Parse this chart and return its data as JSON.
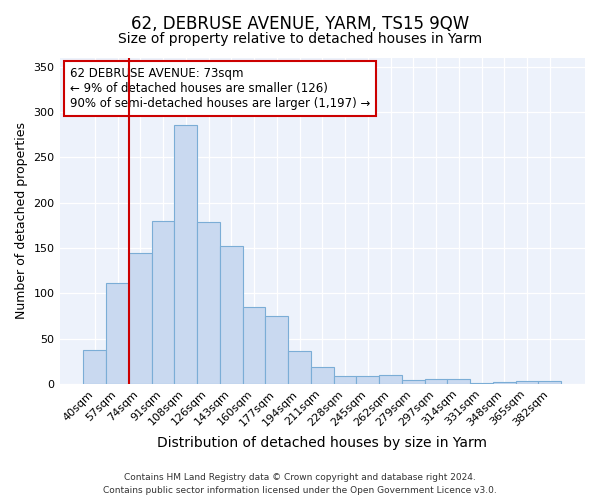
{
  "title": "62, DEBRUSE AVENUE, YARM, TS15 9QW",
  "subtitle": "Size of property relative to detached houses in Yarm",
  "xlabel": "Distribution of detached houses by size in Yarm",
  "ylabel": "Number of detached properties",
  "bar_labels": [
    "40sqm",
    "57sqm",
    "74sqm",
    "91sqm",
    "108sqm",
    "126sqm",
    "143sqm",
    "160sqm",
    "177sqm",
    "194sqm",
    "211sqm",
    "228sqm",
    "245sqm",
    "262sqm",
    "279sqm",
    "297sqm",
    "314sqm",
    "331sqm",
    "348sqm",
    "365sqm",
    "382sqm"
  ],
  "bar_values": [
    37,
    111,
    144,
    180,
    286,
    178,
    152,
    85,
    75,
    36,
    19,
    9,
    9,
    10,
    4,
    5,
    5,
    1,
    2,
    3,
    3
  ],
  "bar_color": "#c9d9f0",
  "bar_edge_color": "#7badd6",
  "vline_color": "#cc0000",
  "vline_x_index": 2,
  "annotation_title": "62 DEBRUSE AVENUE: 73sqm",
  "annotation_line1": "← 9% of detached houses are smaller (126)",
  "annotation_line2": "90% of semi-detached houses are larger (1,197) →",
  "annotation_box_edge": "#cc0000",
  "ylim": [
    0,
    360
  ],
  "yticks": [
    0,
    50,
    100,
    150,
    200,
    250,
    300,
    350
  ],
  "footer1": "Contains HM Land Registry data © Crown copyright and database right 2024.",
  "footer2": "Contains public sector information licensed under the Open Government Licence v3.0.",
  "bg_color": "#ffffff",
  "plot_bg_color": "#edf2fb",
  "title_fontsize": 12,
  "subtitle_fontsize": 10,
  "xlabel_fontsize": 10,
  "ylabel_fontsize": 9,
  "tick_fontsize": 8,
  "annotation_fontsize": 8.5,
  "footer_fontsize": 6.5
}
